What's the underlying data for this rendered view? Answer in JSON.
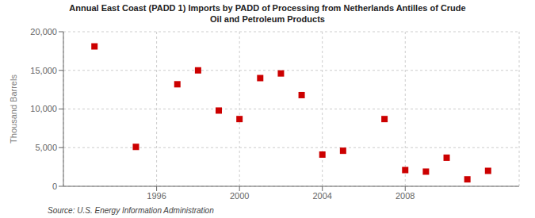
{
  "chart_data": {
    "type": "scatter",
    "title": "Annual East Coast (PADD 1) Imports by PADD of Processing from Netherlands Antilles of Crude\nOil and Petroleum Products",
    "ylabel": "Thousand Barrels",
    "annotations": [
      "Source: U.S. Energy Information Administration"
    ],
    "x": [
      1993,
      1995,
      1997,
      1998,
      1999,
      2000,
      2001,
      2002,
      2003,
      2004,
      2005,
      2007,
      2008,
      2009,
      2010,
      2011,
      2012
    ],
    "values": [
      18100,
      5100,
      13200,
      15000,
      9800,
      8700,
      14000,
      14600,
      11800,
      4100,
      4600,
      8700,
      2100,
      1900,
      3700,
      900,
      2000
    ],
    "color": "#cc0000",
    "marker": "square",
    "xlim": [
      1991.5,
      2013.5
    ],
    "xticks": [
      1996,
      2000,
      2004,
      2008
    ],
    "ylim": [
      0,
      20000
    ],
    "yticks": [
      0,
      {
        "value": 5000,
        "label": "5,000"
      },
      {
        "value": 10000,
        "label": "10,000"
      },
      {
        "value": 15000,
        "label": "15,000"
      },
      {
        "value": 20000,
        "label": "20,000"
      }
    ],
    "grid": true
  }
}
